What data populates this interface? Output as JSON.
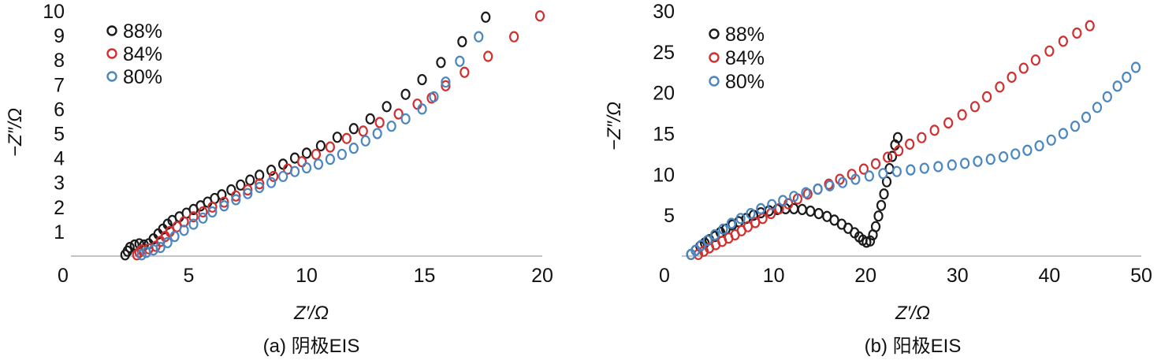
{
  "chart_data": [
    {
      "type": "scatter",
      "caption": "(a) 阴极EIS",
      "xlabel": "Z′/Ω",
      "ylabel": "−Z″/Ω",
      "xlim": [
        0,
        20
      ],
      "ylim": [
        0,
        10
      ],
      "xticks": [
        "0",
        "5",
        "10",
        "15",
        "20"
      ],
      "yticks": [
        "1",
        "2",
        "3",
        "4",
        "5",
        "6",
        "7",
        "8",
        "9",
        "10"
      ],
      "legend_position": "top-left",
      "grid": false,
      "series": [
        {
          "name": "88%",
          "color": "#1a1a1a",
          "points": [
            [
              2.3,
              0.05
            ],
            [
              2.4,
              0.2
            ],
            [
              2.5,
              0.35
            ],
            [
              2.7,
              0.45
            ],
            [
              2.9,
              0.5
            ],
            [
              3.1,
              0.45
            ],
            [
              3.3,
              0.5
            ],
            [
              3.5,
              0.7
            ],
            [
              3.7,
              0.9
            ],
            [
              3.9,
              1.1
            ],
            [
              4.1,
              1.3
            ],
            [
              4.3,
              1.45
            ],
            [
              4.6,
              1.6
            ],
            [
              4.9,
              1.75
            ],
            [
              5.2,
              1.9
            ],
            [
              5.5,
              2.05
            ],
            [
              5.8,
              2.2
            ],
            [
              6.1,
              2.35
            ],
            [
              6.4,
              2.5
            ],
            [
              6.8,
              2.7
            ],
            [
              7.2,
              2.9
            ],
            [
              7.6,
              3.1
            ],
            [
              8.0,
              3.3
            ],
            [
              8.5,
              3.5
            ],
            [
              9.0,
              3.75
            ],
            [
              9.5,
              4.0
            ],
            [
              10.0,
              4.2
            ],
            [
              10.6,
              4.5
            ],
            [
              11.3,
              4.85
            ],
            [
              12.0,
              5.2
            ],
            [
              12.7,
              5.6
            ],
            [
              13.4,
              6.1
            ],
            [
              14.2,
              6.6
            ],
            [
              14.9,
              7.2
            ],
            [
              15.7,
              7.9
            ],
            [
              16.6,
              8.75
            ],
            [
              17.6,
              9.75
            ]
          ]
        },
        {
          "name": "84%",
          "color": "#d03030",
          "points": [
            [
              2.8,
              0.05
            ],
            [
              2.9,
              0.15
            ],
            [
              3.0,
              0.25
            ],
            [
              3.3,
              0.3
            ],
            [
              3.6,
              0.4
            ],
            [
              3.8,
              0.6
            ],
            [
              4.0,
              0.8
            ],
            [
              4.2,
              1.0
            ],
            [
              4.5,
              1.2
            ],
            [
              4.8,
              1.4
            ],
            [
              5.2,
              1.6
            ],
            [
              5.6,
              1.8
            ],
            [
              6.0,
              2.0
            ],
            [
              6.5,
              2.2
            ],
            [
              7.0,
              2.45
            ],
            [
              7.5,
              2.7
            ],
            [
              8.0,
              2.95
            ],
            [
              8.6,
              3.25
            ],
            [
              9.2,
              3.55
            ],
            [
              9.8,
              3.85
            ],
            [
              10.4,
              4.15
            ],
            [
              11.0,
              4.45
            ],
            [
              11.7,
              4.8
            ],
            [
              12.4,
              5.1
            ],
            [
              13.1,
              5.45
            ],
            [
              13.9,
              5.8
            ],
            [
              14.7,
              6.2
            ],
            [
              15.3,
              6.45
            ],
            [
              15.9,
              6.95
            ],
            [
              16.7,
              7.5
            ],
            [
              17.7,
              8.15
            ],
            [
              18.8,
              8.95
            ],
            [
              19.9,
              9.8
            ]
          ]
        },
        {
          "name": "80%",
          "color": "#4a86bf",
          "points": [
            [
              3.0,
              0.05
            ],
            [
              3.2,
              0.15
            ],
            [
              3.5,
              0.25
            ],
            [
              3.8,
              0.35
            ],
            [
              4.1,
              0.55
            ],
            [
              4.4,
              0.8
            ],
            [
              4.8,
              1.05
            ],
            [
              5.2,
              1.3
            ],
            [
              5.6,
              1.55
            ],
            [
              6.0,
              1.8
            ],
            [
              6.5,
              2.05
            ],
            [
              7.0,
              2.3
            ],
            [
              7.5,
              2.55
            ],
            [
              8.0,
              2.8
            ],
            [
              8.5,
              3.0
            ],
            [
              9.0,
              3.25
            ],
            [
              9.5,
              3.45
            ],
            [
              10.0,
              3.6
            ],
            [
              10.5,
              3.75
            ],
            [
              11.0,
              3.95
            ],
            [
              11.5,
              4.15
            ],
            [
              12.0,
              4.4
            ],
            [
              12.5,
              4.7
            ],
            [
              13.0,
              5.0
            ],
            [
              13.6,
              5.3
            ],
            [
              14.2,
              5.6
            ],
            [
              14.9,
              6.0
            ],
            [
              15.4,
              6.5
            ],
            [
              15.9,
              7.1
            ],
            [
              16.5,
              7.95
            ],
            [
              17.3,
              8.95
            ]
          ]
        }
      ]
    },
    {
      "type": "scatter",
      "caption": "(b) 阳极EIS",
      "xlabel": "Z′/Ω",
      "ylabel": "−Z″/Ω",
      "xlim": [
        0,
        50
      ],
      "ylim": [
        0,
        30
      ],
      "xticks": [
        "0",
        "10",
        "20",
        "30",
        "40",
        "50"
      ],
      "yticks": [
        "5",
        "10",
        "15",
        "20",
        "25",
        "30"
      ],
      "legend_position": "top-left",
      "grid": false,
      "series": [
        {
          "name": "88%",
          "color": "#1a1a1a",
          "points": [
            [
              1.0,
              0.2
            ],
            [
              1.5,
              0.7
            ],
            [
              2.0,
              1.2
            ],
            [
              2.5,
              1.6
            ],
            [
              3.0,
              2.0
            ],
            [
              3.6,
              2.4
            ],
            [
              4.2,
              2.9
            ],
            [
              4.8,
              3.3
            ],
            [
              5.5,
              3.8
            ],
            [
              6.2,
              4.2
            ],
            [
              7.0,
              4.6
            ],
            [
              7.8,
              5.0
            ],
            [
              8.6,
              5.3
            ],
            [
              9.5,
              5.55
            ],
            [
              10.4,
              5.7
            ],
            [
              11.3,
              5.8
            ],
            [
              12.2,
              5.8
            ],
            [
              13.1,
              5.7
            ],
            [
              14.0,
              5.5
            ],
            [
              14.9,
              5.2
            ],
            [
              15.8,
              4.85
            ],
            [
              16.6,
              4.4
            ],
            [
              17.4,
              3.9
            ],
            [
              18.1,
              3.4
            ],
            [
              18.8,
              2.85
            ],
            [
              19.3,
              2.35
            ],
            [
              19.7,
              1.95
            ],
            [
              20.1,
              1.7
            ],
            [
              20.5,
              1.85
            ],
            [
              20.8,
              2.6
            ],
            [
              21.1,
              3.6
            ],
            [
              21.4,
              4.9
            ],
            [
              21.7,
              6.2
            ],
            [
              22.0,
              7.6
            ],
            [
              22.3,
              9.1
            ],
            [
              22.6,
              10.7
            ],
            [
              22.9,
              12.2
            ],
            [
              23.2,
              13.6
            ],
            [
              23.5,
              14.5
            ]
          ]
        },
        {
          "name": "84%",
          "color": "#d03030",
          "points": [
            [
              1.8,
              0.2
            ],
            [
              2.4,
              0.6
            ],
            [
              3.0,
              1.0
            ],
            [
              3.7,
              1.4
            ],
            [
              4.4,
              1.8
            ],
            [
              5.1,
              2.2
            ],
            [
              5.8,
              2.6
            ],
            [
              6.5,
              3.1
            ],
            [
              7.2,
              3.6
            ],
            [
              8.0,
              4.1
            ],
            [
              8.8,
              4.6
            ],
            [
              9.7,
              5.2
            ],
            [
              10.6,
              5.8
            ],
            [
              11.6,
              6.4
            ],
            [
              12.6,
              7.0
            ],
            [
              13.7,
              7.6
            ],
            [
              14.8,
              8.2
            ],
            [
              16.0,
              8.8
            ],
            [
              17.2,
              9.4
            ],
            [
              18.5,
              10.0
            ],
            [
              19.8,
              10.65
            ],
            [
              21.1,
              11.3
            ],
            [
              22.4,
              12.1
            ],
            [
              23.6,
              12.9
            ],
            [
              24.8,
              13.7
            ],
            [
              26.1,
              14.5
            ],
            [
              27.5,
              15.4
            ],
            [
              29.0,
              16.3
            ],
            [
              30.5,
              17.3
            ],
            [
              31.9,
              18.3
            ],
            [
              33.2,
              19.5
            ],
            [
              34.6,
              20.7
            ],
            [
              35.9,
              21.9
            ],
            [
              37.2,
              23.0
            ],
            [
              38.5,
              24.0
            ],
            [
              40.0,
              25.1
            ],
            [
              41.5,
              26.3
            ],
            [
              43.0,
              27.3
            ],
            [
              44.4,
              28.2
            ]
          ]
        },
        {
          "name": "80%",
          "color": "#4a86bf",
          "points": [
            [
              1.0,
              0.2
            ],
            [
              1.5,
              0.7
            ],
            [
              2.1,
              1.3
            ],
            [
              2.8,
              1.9
            ],
            [
              3.6,
              2.6
            ],
            [
              4.5,
              3.3
            ],
            [
              5.4,
              4.0
            ],
            [
              6.4,
              4.6
            ],
            [
              7.5,
              5.2
            ],
            [
              8.6,
              5.8
            ],
            [
              9.8,
              6.3
            ],
            [
              11.0,
              6.8
            ],
            [
              12.2,
              7.3
            ],
            [
              13.5,
              7.75
            ],
            [
              14.8,
              8.2
            ],
            [
              16.1,
              8.6
            ],
            [
              17.5,
              9.0
            ],
            [
              18.9,
              9.4
            ],
            [
              20.4,
              9.8
            ],
            [
              21.9,
              10.1
            ],
            [
              23.4,
              10.35
            ],
            [
              24.9,
              10.55
            ],
            [
              26.4,
              10.75
            ],
            [
              27.9,
              10.95
            ],
            [
              29.4,
              11.15
            ],
            [
              30.8,
              11.35
            ],
            [
              32.2,
              11.6
            ],
            [
              33.6,
              11.85
            ],
            [
              35.0,
              12.15
            ],
            [
              36.3,
              12.5
            ],
            [
              37.6,
              12.95
            ],
            [
              38.9,
              13.5
            ],
            [
              40.2,
              14.2
            ],
            [
              41.5,
              15.0
            ],
            [
              42.8,
              15.9
            ],
            [
              44.0,
              17.0
            ],
            [
              45.2,
              18.2
            ],
            [
              46.3,
              19.5
            ],
            [
              47.4,
              20.8
            ],
            [
              48.4,
              21.9
            ],
            [
              49.4,
              23.1
            ]
          ]
        }
      ]
    }
  ]
}
